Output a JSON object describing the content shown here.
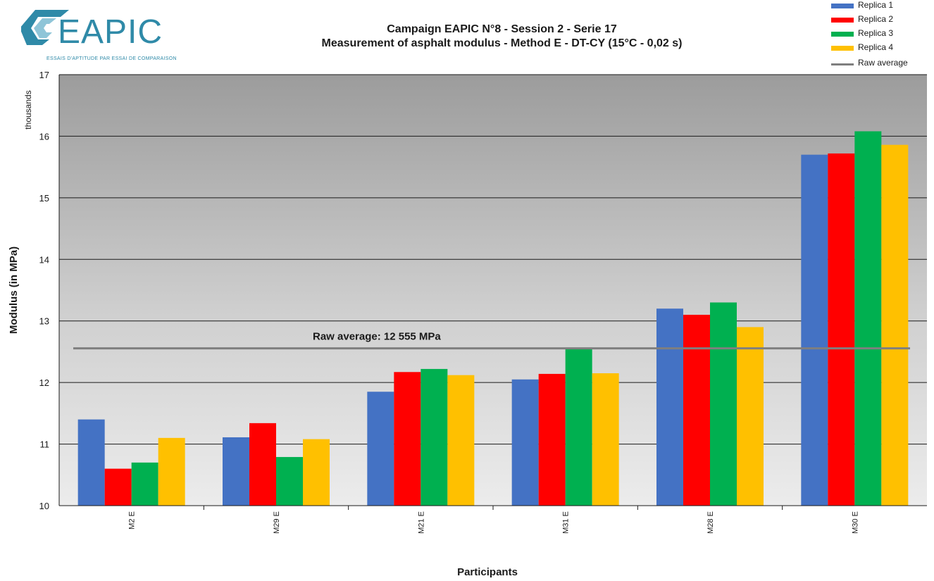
{
  "logo": {
    "wordmark": "EAPIC",
    "tagline": "ESSAIS D'APTITUDE PAR ESSAI DE COMPARAISON",
    "color": "#2f8aa8"
  },
  "title": {
    "line1": "Campaign EAPIC N°8 - Session 2 - Serie 17",
    "line2": "Measurement of asphalt modulus - Method E - DT-CY (15°C - 0,02 s)"
  },
  "legend": [
    {
      "label": "Replica 1",
      "color": "#4472c4",
      "kind": "bar"
    },
    {
      "label": "Replica 2",
      "color": "#ff0000",
      "kind": "bar"
    },
    {
      "label": "Replica 3",
      "color": "#00b050",
      "kind": "bar"
    },
    {
      "label": "Replica 4",
      "color": "#ffc000",
      "kind": "bar"
    },
    {
      "label": "Raw average",
      "color": "#7f7f7f",
      "kind": "line"
    }
  ],
  "chart_data": {
    "type": "bar",
    "xlabel": "Participants",
    "ylabel": "Modulus (in MPa)",
    "y_units_label": "thousands",
    "ylim": [
      10,
      17
    ],
    "yticks": [
      10,
      11,
      12,
      13,
      14,
      15,
      16,
      17
    ],
    "grid": true,
    "legend_position": "top-right",
    "categories": [
      "M2 E",
      "M29 E",
      "M21 E",
      "M31 E",
      "M28 E",
      "M30 E"
    ],
    "series": [
      {
        "name": "Replica 1",
        "color": "#4472c4",
        "values": [
          11.4,
          11.11,
          11.85,
          12.05,
          13.2,
          15.7
        ]
      },
      {
        "name": "Replica 2",
        "color": "#ff0000",
        "values": [
          10.6,
          11.34,
          12.17,
          12.14,
          13.1,
          15.72
        ]
      },
      {
        "name": "Replica 3",
        "color": "#00b050",
        "values": [
          10.7,
          10.79,
          12.22,
          12.55,
          13.3,
          16.08
        ]
      },
      {
        "name": "Replica 4",
        "color": "#ffc000",
        "values": [
          11.1,
          11.08,
          12.12,
          12.15,
          12.9,
          15.86
        ]
      }
    ],
    "reference_line": {
      "name": "Raw average",
      "value": 12.555,
      "color": "#7f7f7f",
      "label": "Raw average: 12 555 MPa"
    }
  }
}
